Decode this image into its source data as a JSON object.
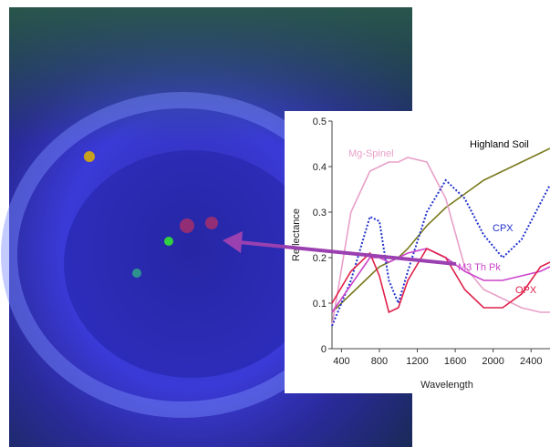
{
  "chart_data": {
    "type": "line",
    "x_label": "Wavelength",
    "y_label": "Reflectance",
    "x": [
      300,
      500,
      700,
      800,
      900,
      1000,
      1100,
      1300,
      1500,
      1700,
      1900,
      2100,
      2300,
      2500,
      2600
    ],
    "xlim": [
      300,
      2600
    ],
    "xticks": [
      400,
      800,
      1200,
      1600,
      2000,
      2400
    ],
    "ylim": [
      0,
      0.5
    ],
    "yticks": [
      0,
      0.1,
      0.2,
      0.3,
      0.4,
      0.5
    ],
    "series": [
      {
        "name": "Highland Soil",
        "color": "#7a7a1e",
        "style": "solid",
        "values": [
          0.08,
          0.12,
          0.16,
          0.18,
          0.19,
          0.2,
          0.22,
          0.27,
          0.31,
          0.34,
          0.37,
          0.39,
          0.41,
          0.43,
          0.44
        ]
      },
      {
        "name": "Mg-Spinel",
        "color": "#e8a0c8",
        "style": "solid",
        "values": [
          0.05,
          0.3,
          0.39,
          0.4,
          0.41,
          0.41,
          0.42,
          0.41,
          0.33,
          0.18,
          0.13,
          0.11,
          0.09,
          0.08,
          0.08
        ]
      },
      {
        "name": "CPX",
        "color": "#2233cc",
        "style": "dotted",
        "values": [
          0.05,
          0.15,
          0.29,
          0.28,
          0.15,
          0.1,
          0.17,
          0.3,
          0.37,
          0.33,
          0.25,
          0.2,
          0.24,
          0.32,
          0.36
        ]
      },
      {
        "name": "M3 Th Pk",
        "color": "#cc44cc",
        "style": "solid",
        "values": [
          0.08,
          0.14,
          0.2,
          0.2,
          0.19,
          0.2,
          0.21,
          0.22,
          0.2,
          0.17,
          0.15,
          0.15,
          0.16,
          0.17,
          0.18
        ]
      },
      {
        "name": "OPX",
        "color": "#e0204a",
        "style": "solid",
        "values": [
          0.1,
          0.17,
          0.21,
          0.16,
          0.08,
          0.09,
          0.15,
          0.22,
          0.2,
          0.13,
          0.09,
          0.09,
          0.12,
          0.18,
          0.19
        ]
      }
    ]
  }
}
